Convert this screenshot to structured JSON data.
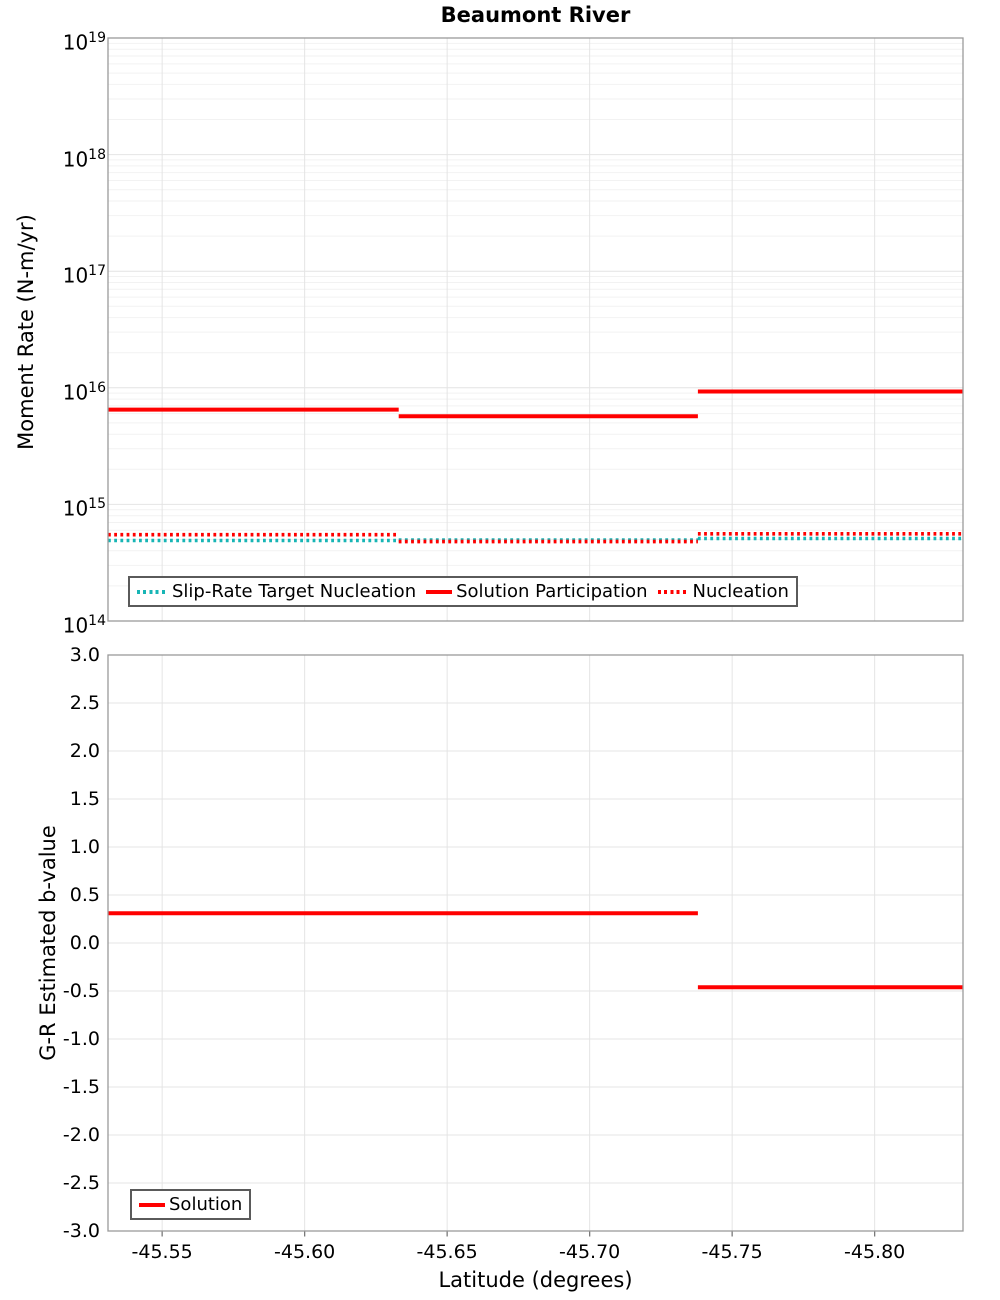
{
  "title": "Beaumont River",
  "xlabel": "Latitude (degrees)",
  "x_ticks": [
    {
      "label": "-45.55",
      "value": -45.55
    },
    {
      "label": "-45.60",
      "value": -45.6
    },
    {
      "label": "-45.65",
      "value": -45.65
    },
    {
      "label": "-45.70",
      "value": -45.7
    },
    {
      "label": "-45.75",
      "value": -45.75
    },
    {
      "label": "-45.80",
      "value": -45.8
    }
  ],
  "colors": {
    "red": "#ff0000",
    "teal": "#17b5b5",
    "grid_major": "#e4e4e4",
    "grid_minor": "#f2f2f2",
    "axis_border": "#9a9a9a",
    "tick_mark": "#7a7a7a"
  },
  "top_panel": {
    "ylabel": "Moment Rate (N-m/yr)",
    "y_tick_exponents": [
      19,
      18,
      17,
      16,
      15,
      14
    ],
    "legend": [
      {
        "label": "Slip-Rate Target Nucleation",
        "color": "#17b5b5",
        "style": "dotted"
      },
      {
        "label": "Solution Participation",
        "color": "#ff0000",
        "style": "solid"
      },
      {
        "label": "Nucleation",
        "color": "#ff0000",
        "style": "dotted"
      }
    ]
  },
  "bottom_panel": {
    "ylabel": "G-R Estimated b-value",
    "y_ticks": [
      {
        "label": "3.0",
        "value": 3.0
      },
      {
        "label": "2.5",
        "value": 2.5
      },
      {
        "label": "2.0",
        "value": 2.0
      },
      {
        "label": "1.5",
        "value": 1.5
      },
      {
        "label": "1.0",
        "value": 1.0
      },
      {
        "label": "0.5",
        "value": 0.5
      },
      {
        "label": "0.0",
        "value": 0.0
      },
      {
        "label": "-0.5",
        "value": -0.5
      },
      {
        "label": "-1.0",
        "value": -1.0
      },
      {
        "label": "-1.5",
        "value": -1.5
      },
      {
        "label": "-2.0",
        "value": -2.0
      },
      {
        "label": "-2.5",
        "value": -2.5
      },
      {
        "label": "-3.0",
        "value": -3.0
      }
    ],
    "legend": [
      {
        "label": "Solution",
        "color": "#ff0000",
        "style": "solid"
      }
    ]
  },
  "chart_data": [
    {
      "type": "line",
      "step": true,
      "title": "Beaumont River",
      "ylabel": "Moment Rate (N-m/yr)",
      "yscale": "log",
      "ylim": [
        100000000000000.0,
        1e+19
      ],
      "xlim": [
        -45.531,
        -45.831
      ],
      "grid": true,
      "legend_position": "bottom-left-inside",
      "x_breaks": [
        -45.531,
        -45.633,
        -45.738,
        -45.831
      ],
      "series": [
        {
          "name": "Slip-Rate Target Nucleation",
          "style": "dotted",
          "color": "#17b5b5",
          "values": [
            490000000000000.0,
            495000000000000.0,
            510000000000000.0
          ]
        },
        {
          "name": "Solution Participation",
          "style": "solid",
          "color": "#ff0000",
          "values": [
            6500000000000000.0,
            5700000000000000.0,
            9300000000000000.0
          ]
        },
        {
          "name": "Nucleation",
          "style": "dotted",
          "color": "#ff0000",
          "values": [
            550000000000000.0,
            480000000000000.0,
            560000000000000.0
          ]
        }
      ]
    },
    {
      "type": "line",
      "step": true,
      "ylabel": "G-R Estimated b-value",
      "xlabel": "Latitude (degrees)",
      "yscale": "linear",
      "ylim": [
        -3.0,
        3.0
      ],
      "xlim": [
        -45.531,
        -45.831
      ],
      "grid": true,
      "legend_position": "bottom-left-inside",
      "x_breaks": [
        -45.531,
        -45.738,
        -45.831
      ],
      "series": [
        {
          "name": "Solution",
          "style": "solid",
          "color": "#ff0000",
          "values": [
            0.31,
            -0.46
          ]
        }
      ]
    }
  ]
}
